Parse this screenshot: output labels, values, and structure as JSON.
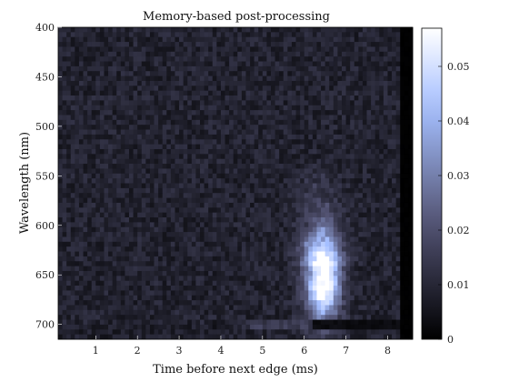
{
  "chart_data": {
    "type": "heatmap",
    "title": "Memory-based post-processing",
    "xlabel": "Time before next edge (ms)",
    "ylabel": "Wavelength (nm)",
    "xlim": [
      0.1,
      8.6
    ],
    "ylim": [
      715,
      400
    ],
    "x_ticks": [
      1,
      2,
      3,
      4,
      5,
      6,
      7,
      8
    ],
    "y_ticks": [
      400,
      450,
      500,
      550,
      600,
      650,
      700
    ],
    "colorbar": {
      "colormap": "bone",
      "range": [
        0,
        0.057
      ],
      "ticks": [
        0,
        0.01,
        0.02,
        0.03,
        0.04,
        0.05
      ],
      "tick_labels": [
        "0",
        "0.01",
        "0.02",
        "0.03",
        "0.04",
        "0.05"
      ]
    },
    "grid": false,
    "background_level": 0.009,
    "features": [
      {
        "description": "bright emission blob",
        "x_center": 6.45,
        "y_center": 655,
        "x_width": 0.28,
        "y_width": 28,
        "peak": 0.057
      },
      {
        "description": "faint tail above blob",
        "x_center": 6.35,
        "y_center": 590,
        "x_width": 0.35,
        "y_height_range": [
          530,
          640
        ],
        "peak": 0.018
      },
      {
        "description": "horizontal band",
        "y_center": 700,
        "x_range": [
          3.8,
          6.2
        ],
        "level": 0.016
      },
      {
        "description": "dark band after 6.2 ms",
        "y_center": 700,
        "x_range": [
          6.2,
          8.3
        ],
        "level": 0.003
      },
      {
        "description": "dark column at right edge",
        "x_range": [
          8.3,
          8.6
        ],
        "level": 0.0
      }
    ]
  }
}
